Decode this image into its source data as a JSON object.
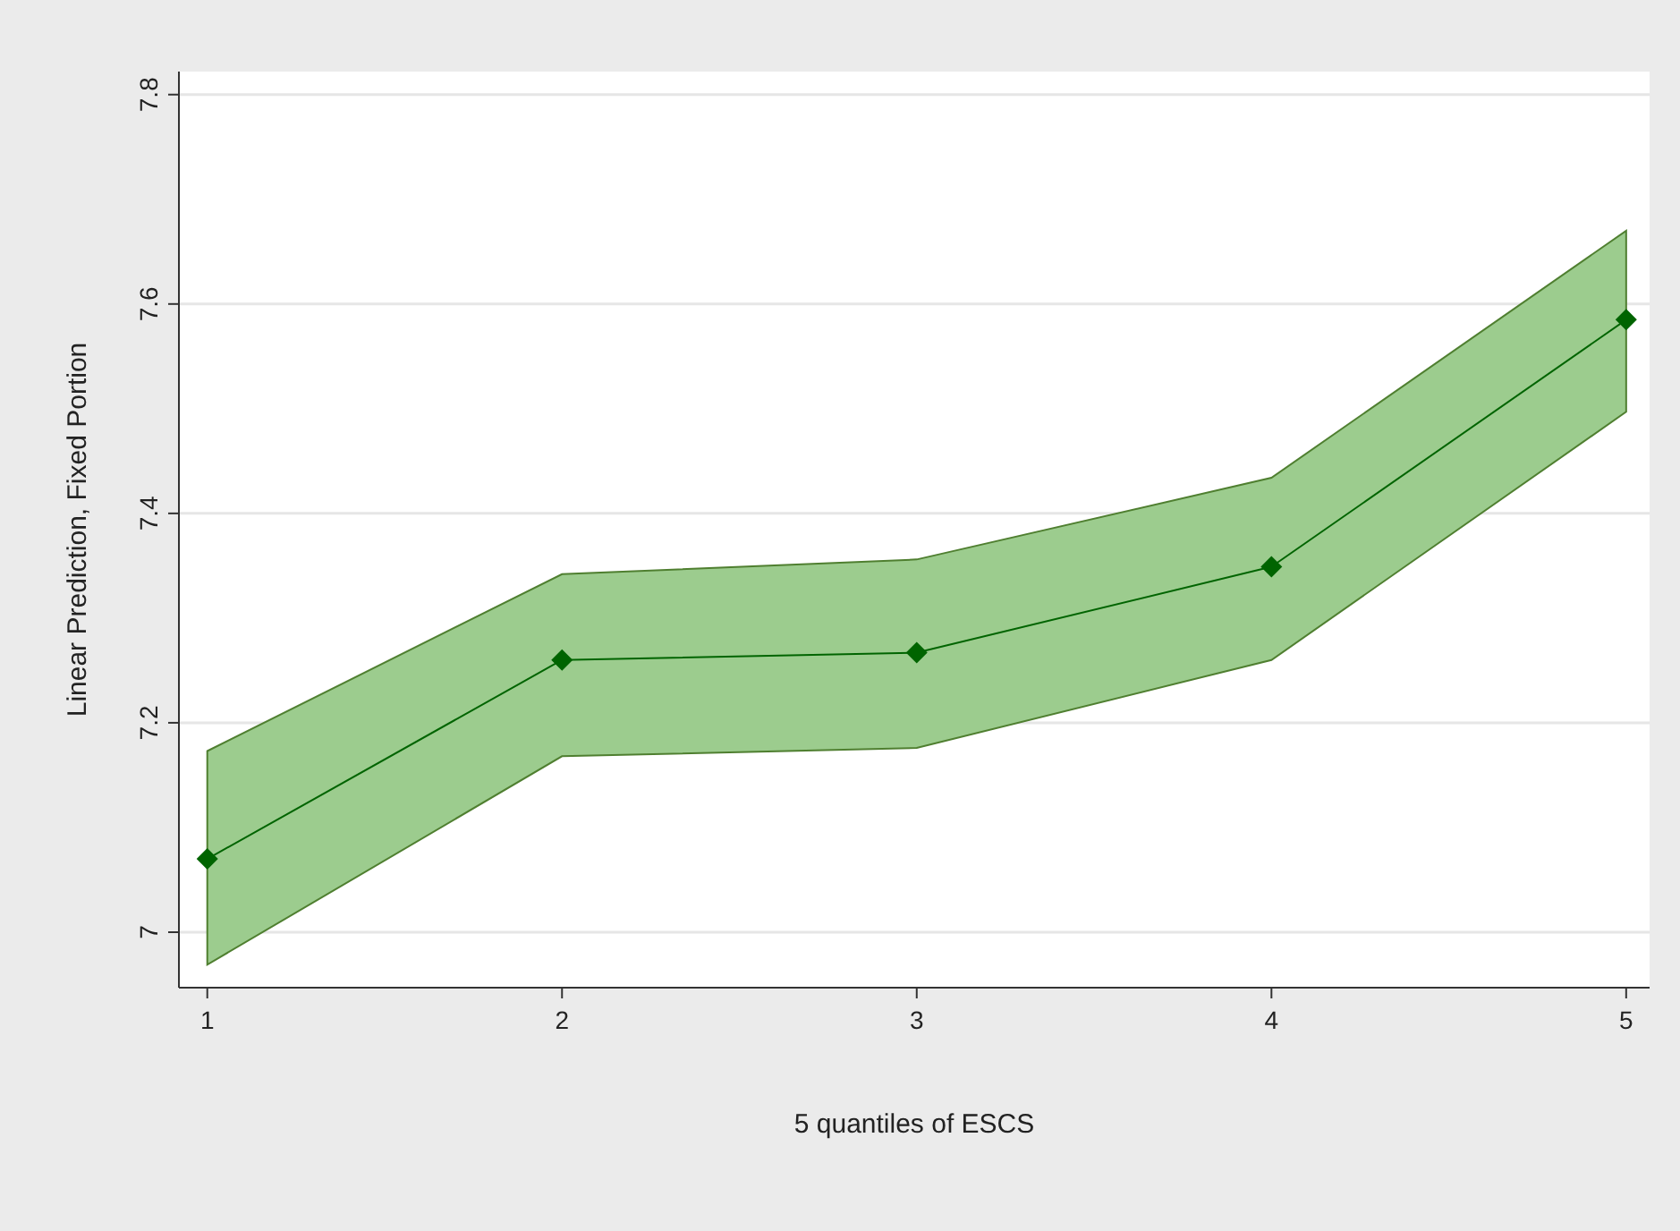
{
  "chart_data": {
    "type": "line",
    "xlabel": "5 quantiles of ESCS",
    "ylabel": "Linear Prediction, Fixed Portion",
    "x": [
      1,
      2,
      3,
      4,
      5
    ],
    "series": [
      {
        "color": "#006400",
        "values": [
          7.07,
          7.26,
          7.267,
          7.349,
          7.585
        ],
        "lower": [
          6.969,
          7.168,
          7.176,
          7.26,
          7.497
        ],
        "upper": [
          7.173,
          7.342,
          7.356,
          7.434,
          7.67
        ]
      }
    ],
    "xlim": [
      0.92,
      5.066
    ],
    "ylim": [
      6.947,
      7.822
    ],
    "xticks": [
      1,
      2,
      3,
      4,
      5
    ],
    "yticks": [
      7,
      7.2,
      7.4,
      7.6,
      7.8
    ],
    "grid": "y",
    "marker": "diamond",
    "line_style": "solid"
  }
}
